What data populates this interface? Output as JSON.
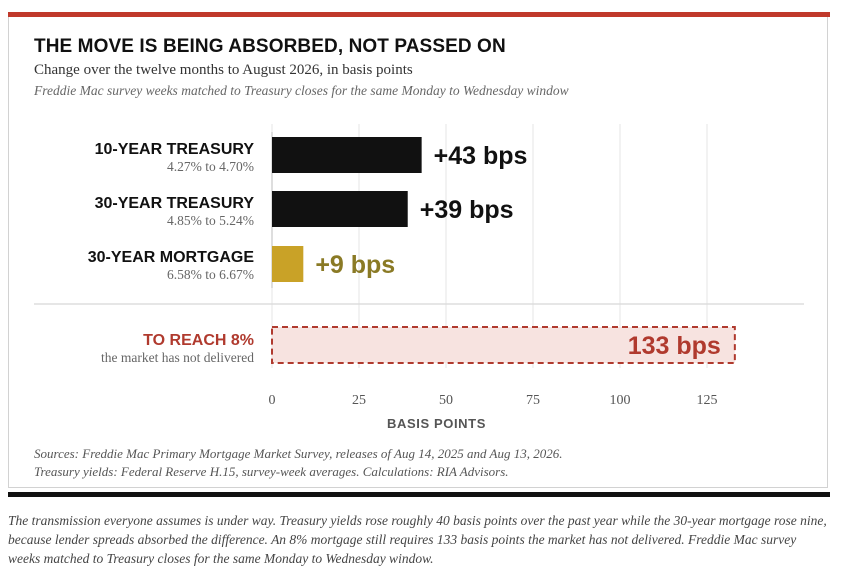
{
  "colors": {
    "accent": "#c0392b",
    "treasury": "#111111",
    "mortgage": "#c9a227",
    "mortgage_label": "#8a7a25",
    "target": "#b03a2e",
    "target_fill": "#f7e3e0",
    "rule": "#111111"
  },
  "header": {
    "title": "THE MOVE IS BEING ABSORBED, NOT PASSED ON",
    "subtitle": "Change over the twelve months to August 2026, in basis points",
    "note": "Freddie Mac survey weeks matched to Treasury closes for the same Monday to Wednesday window"
  },
  "chart_data": {
    "type": "bar",
    "orientation": "horizontal",
    "categories": [
      "10-YEAR TREASURY",
      "30-YEAR TREASURY",
      "30-YEAR MORTGAGE",
      "TO REACH 8%"
    ],
    "sublabels": [
      "4.27% to 4.70%",
      "4.85% to 5.24%",
      "6.58% to 6.67%",
      "the market has not delivered"
    ],
    "values": [
      43,
      39,
      9,
      133
    ],
    "value_labels": [
      "+43 bps",
      "+39 bps",
      "+9 bps",
      "133 bps"
    ],
    "bar_styles": [
      "treasury",
      "treasury",
      "mortgage",
      "target-dashed"
    ],
    "xlabel": "BASIS POINTS",
    "xlim": [
      0,
      135
    ],
    "xticks": [
      0,
      25,
      50,
      75,
      100,
      125
    ],
    "xtick_labels": [
      "0",
      "25",
      "50",
      "75",
      "100",
      "125"
    ],
    "grid": true
  },
  "sources": {
    "line1": "Sources: Freddie Mac Primary Mortgage Market Survey, releases of Aug 14, 2025 and Aug 13, 2026.",
    "line2": "Treasury yields: Federal Reserve H.15, survey-week averages. Calculations: RIA Advisors."
  },
  "caption": "The transmission everyone assumes is under way. Treasury yields rose roughly 40 basis points over the past year while the 30-year mortgage rose nine, because lender spreads absorbed the difference. An 8% mortgage still requires 133 basis points the market has not delivered. Freddie Mac survey weeks matched to Treasury closes for the same Monday to Wednesday window."
}
